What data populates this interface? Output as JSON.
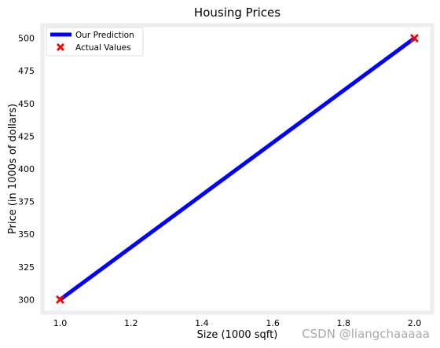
{
  "watermark": "CSDN @liangchaaaaa",
  "chart_data": {
    "type": "line",
    "title": "Housing Prices",
    "xlabel": "Size (1000 sqft)",
    "ylabel": "Price (in 1000s of dollars)",
    "xlim": [
      0.95,
      2.05
    ],
    "ylim": [
      290,
      510
    ],
    "xticks": [
      1.0,
      1.2,
      1.4,
      1.6,
      1.8,
      2.0
    ],
    "xtick_labels": [
      "1.0",
      "1.2",
      "1.4",
      "1.6",
      "1.8",
      "2.0"
    ],
    "yticks": [
      300,
      325,
      350,
      375,
      400,
      425,
      450,
      475,
      500
    ],
    "ytick_labels": [
      "300",
      "325",
      "350",
      "375",
      "400",
      "425",
      "450",
      "475",
      "500"
    ],
    "grid": false,
    "legend_position": "top-left",
    "series": [
      {
        "name": "Our Prediction",
        "kind": "line",
        "color": "#0000ff",
        "x": [
          1.0,
          2.0
        ],
        "y": [
          300,
          500
        ]
      },
      {
        "name": "Actual Values",
        "kind": "scatter",
        "marker": "x",
        "color": "#ff0000",
        "x": [
          1.0,
          2.0
        ],
        "y": [
          300,
          500
        ]
      }
    ]
  }
}
